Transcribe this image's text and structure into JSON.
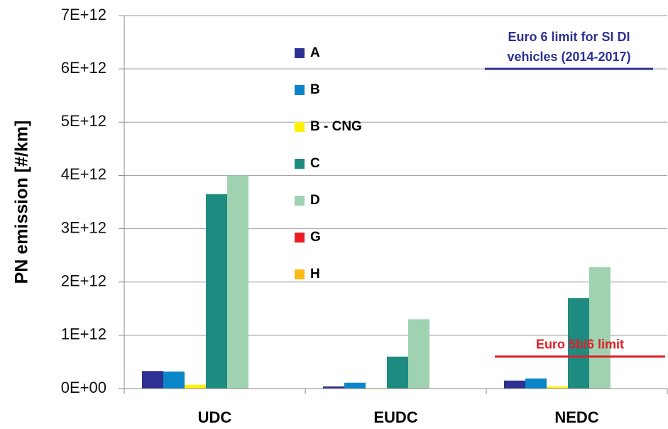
{
  "chart_data": {
    "type": "bar",
    "y_label": "PN emission [#/km]",
    "categories": [
      "UDC",
      "EUDC",
      "NEDC"
    ],
    "series": [
      {
        "name": "A",
        "color": "#2e3192",
        "values": [
          330000000000,
          40000000000,
          150000000000
        ]
      },
      {
        "name": "B",
        "color": "#0a85c9",
        "values": [
          320000000000,
          110000000000,
          190000000000
        ]
      },
      {
        "name": "B - CNG",
        "color": "#fff200",
        "values": [
          70000000000,
          10000000000,
          40000000000
        ]
      },
      {
        "name": "C",
        "color": "#1e8b80",
        "values": [
          3650000000000,
          600000000000,
          1700000000000
        ]
      },
      {
        "name": "D",
        "color": "#9ed2b0",
        "values": [
          4000000000000,
          1300000000000,
          2280000000000
        ]
      },
      {
        "name": "G",
        "color": "#ed1c24",
        "values": [
          0,
          0,
          0
        ]
      },
      {
        "name": "H",
        "color": "#fdb913",
        "values": [
          0,
          0,
          0
        ]
      }
    ],
    "ylim": [
      0,
      7000000000000
    ],
    "yticks": [
      {
        "value": 0,
        "label": "0E+00"
      },
      {
        "value": 1000000000000,
        "label": "1E+12"
      },
      {
        "value": 2000000000000,
        "label": "2E+12"
      },
      {
        "value": 3000000000000,
        "label": "3E+12"
      },
      {
        "value": 4000000000000,
        "label": "4E+12"
      },
      {
        "value": 5000000000000,
        "label": "5E+12"
      },
      {
        "value": 6000000000000,
        "label": "6E+12"
      },
      {
        "value": 7000000000000,
        "label": "7E+12"
      }
    ],
    "grid": true,
    "reference_lines": [
      {
        "label": [
          "Euro 6 limit for SI DI",
          "vehicles (2014-2017)"
        ],
        "value": 6000000000000,
        "color": "#2e3192"
      },
      {
        "label": [
          "Euro 5b/6 limit"
        ],
        "value": 600000000000,
        "color": "#e31e24"
      }
    ]
  }
}
